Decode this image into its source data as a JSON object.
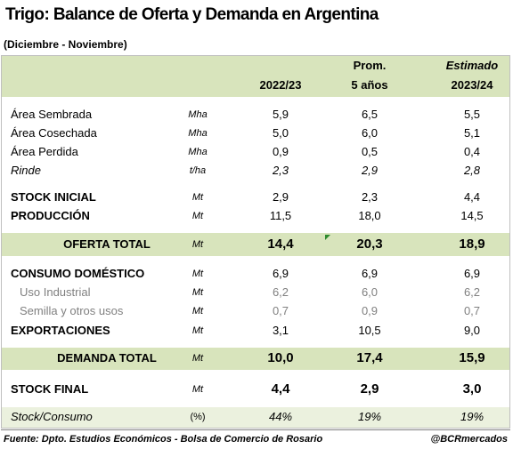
{
  "header": {
    "title": "Trigo: Balance de Oferta y Demanda en Argentina",
    "subtitle": "(Diciembre - Noviembre)"
  },
  "table": {
    "columns": [
      [
        "2022/23"
      ],
      [
        "Prom.",
        "5 años"
      ],
      [
        "Estimado",
        "2023/24"
      ]
    ],
    "rows": [
      {
        "label": "Área Sembrada",
        "unit": "Mha",
        "values": [
          "5,9",
          "6,5",
          "5,5"
        ]
      },
      {
        "label": "Área Cosechada",
        "unit": "Mha",
        "values": [
          "5,0",
          "6,0",
          "5,1"
        ]
      },
      {
        "label": "Área Perdida",
        "unit": "Mha",
        "values": [
          "0,9",
          "0,5",
          "0,4"
        ]
      },
      {
        "label": "Rinde",
        "unit": "t/ha",
        "values": [
          "2,3",
          "2,9",
          "2,8"
        ]
      },
      {
        "label": "STOCK INICIAL",
        "unit": "Mt",
        "values": [
          "2,9",
          "2,3",
          "4,4"
        ]
      },
      {
        "label": "PRODUCCIÓN",
        "unit": "Mt",
        "values": [
          "11,5",
          "18,0",
          "14,5"
        ]
      },
      {
        "label": "OFERTA TOTAL",
        "unit": "Mt",
        "values": [
          "14,4",
          "20,3",
          "18,9"
        ]
      },
      {
        "label": "CONSUMO DOMÉSTICO",
        "unit": "Mt",
        "values": [
          "6,9",
          "6,9",
          "6,9"
        ]
      },
      {
        "label": "Uso Industrial",
        "unit": "Mt",
        "values": [
          "6,2",
          "6,0",
          "6,2"
        ]
      },
      {
        "label": "Semilla y otros usos",
        "unit": "Mt",
        "values": [
          "0,7",
          "0,9",
          "0,7"
        ]
      },
      {
        "label": "EXPORTACIONES",
        "unit": "Mt",
        "values": [
          "3,1",
          "10,5",
          "9,0"
        ]
      },
      {
        "label": "DEMANDA TOTAL",
        "unit": "Mt",
        "values": [
          "10,0",
          "17,4",
          "15,9"
        ]
      },
      {
        "label": "STOCK FINAL",
        "unit": "Mt",
        "values": [
          "4,4",
          "2,9",
          "3,0"
        ]
      },
      {
        "label": "Stock/Consumo",
        "unit": "(%)",
        "values": [
          "44%",
          "19%",
          "19%"
        ]
      }
    ]
  },
  "footer": {
    "source": "Fuente: Dpto. Estudios Económicos - Bolsa de Comercio de Rosario",
    "handle": "@BCRmercados"
  }
}
